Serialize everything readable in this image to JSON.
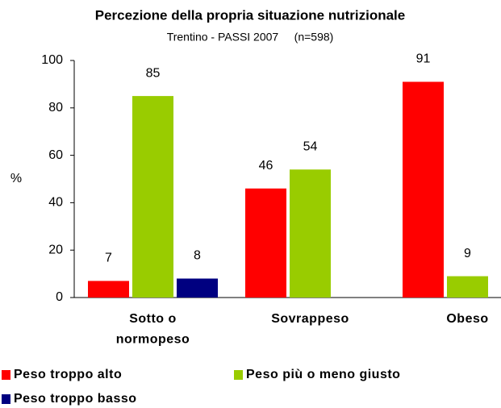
{
  "chart_data": {
    "type": "bar",
    "title": "Percezione della propria situazione nutrizionale",
    "subtitle": "Trentino - PASSI 2007     (n=598)",
    "y_label": "%",
    "categories": [
      "Sotto o\nnormopeso",
      "Sovrappeso",
      "Obeso"
    ],
    "series": [
      {
        "name": "Peso troppo alto",
        "color": "#ff0000",
        "values": [
          7,
          46,
          91
        ]
      },
      {
        "name": "Peso più o meno giusto",
        "color": "#99cc00",
        "values": [
          85,
          54,
          9
        ]
      },
      {
        "name": "Peso troppo basso",
        "color": "#000080",
        "values": [
          8,
          null,
          null
        ]
      }
    ],
    "ylim": [
      0,
      100
    ],
    "yticks": [
      0,
      20,
      40,
      60,
      80,
      100
    ],
    "grid": false
  }
}
